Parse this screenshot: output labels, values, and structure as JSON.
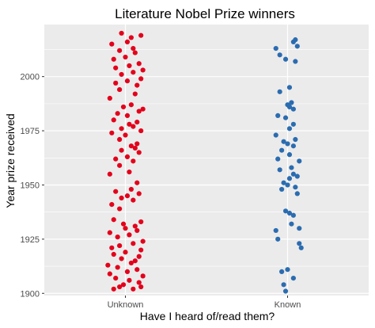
{
  "chart_data": {
    "type": "scatter",
    "title": "Literature Nobel Prize winners",
    "xlabel": "Have I heard of/read them?",
    "ylabel": "Year prize received",
    "categories": [
      "Unknown",
      "Known"
    ],
    "ylim": [
      1899,
      2024
    ],
    "yticks": [
      1900,
      1925,
      1950,
      1975,
      2000
    ],
    "grid": true,
    "legend": "none",
    "colors": {
      "panel": "#ebebeb",
      "grid": "#ffffff",
      "tick": "#333333",
      "Unknown": "#e3001b",
      "Known": "#2b6cb0"
    },
    "series": [
      {
        "name": "Unknown",
        "category": "Unknown",
        "years": [
          1902,
          1902,
          1903,
          1903,
          1904,
          1905,
          1906,
          1907,
          1908,
          1909,
          1910,
          1911,
          1912,
          1913,
          1914,
          1915,
          1916,
          1917,
          1918,
          1919,
          1920,
          1921,
          1922,
          1923,
          1924,
          1926,
          1927,
          1928,
          1929,
          1930,
          1931,
          1932,
          1933,
          1934,
          1939,
          1941,
          1943,
          1944,
          1945,
          1946,
          1947,
          1948,
          1951,
          1955,
          1956,
          1959,
          1961,
          1962,
          1963,
          1965,
          1966,
          1967,
          1968,
          1969,
          1971,
          1973,
          1974,
          1975,
          1976,
          1977,
          1978,
          1979,
          1980,
          1982,
          1983,
          1984,
          1985,
          1986,
          1987,
          1990,
          1992,
          1994,
          1996,
          1997,
          1998,
          1999,
          2001,
          2002,
          2003,
          2004,
          2005,
          2006,
          2008,
          2009,
          2011,
          2012,
          2013,
          2015,
          2016,
          2018,
          2019,
          2020
        ],
        "jitter": [
          -0.6,
          0.4,
          0.8,
          -0.3,
          -0.1,
          0.7,
          0.2,
          -0.5,
          0.9,
          -0.8,
          0.1,
          0.6,
          -0.4,
          -0.9,
          0.3,
          0.5,
          -0.2,
          0.7,
          -0.6,
          0.0,
          0.8,
          -0.7,
          -0.3,
          0.4,
          0.9,
          -0.4,
          0.2,
          -0.8,
          0.6,
          0.0,
          0.5,
          -0.1,
          0.8,
          -0.6,
          -0.3,
          -0.7,
          0.4,
          -0.2,
          0.1,
          0.7,
          -0.5,
          0.3,
          0.6,
          -0.8,
          0.2,
          -0.3,
          0.4,
          -0.5,
          0.1,
          0.7,
          -0.2,
          0.5,
          0.3,
          0.6,
          -0.3,
          0.0,
          -0.7,
          0.8,
          -0.2,
          0.4,
          0.2,
          0.6,
          -0.6,
          0.1,
          -0.4,
          0.7,
          0.9,
          -0.1,
          0.3,
          -0.8,
          0.5,
          -0.3,
          0.6,
          -0.5,
          0.1,
          0.8,
          -0.2,
          0.4,
          0.9,
          -0.5,
          0.2,
          0.7,
          -0.6,
          0.0,
          0.5,
          -0.3,
          0.4,
          -0.7,
          0.1,
          0.3,
          0.8,
          -0.2
        ]
      },
      {
        "name": "Known",
        "category": "Known",
        "years": [
          1901,
          1904,
          1907,
          1910,
          1911,
          1921,
          1923,
          1925,
          1929,
          1930,
          1932,
          1936,
          1937,
          1938,
          1946,
          1948,
          1949,
          1950,
          1951,
          1953,
          1954,
          1955,
          1957,
          1958,
          1961,
          1962,
          1964,
          1966,
          1968,
          1969,
          1970,
          1971,
          1973,
          1976,
          1978,
          1981,
          1982,
          1985,
          1986,
          1987,
          1988,
          1993,
          1995,
          2007,
          2008,
          2010,
          2013,
          2014,
          2016,
          2017
        ],
        "jitter": [
          -0.1,
          -0.2,
          0.3,
          -0.3,
          0.0,
          0.7,
          0.6,
          -0.5,
          -0.6,
          0.6,
          0.2,
          0.3,
          0.1,
          -0.1,
          0.5,
          -0.3,
          0.4,
          0.0,
          -0.2,
          0.1,
          0.5,
          0.3,
          -0.4,
          0.2,
          0.6,
          -0.5,
          0.1,
          -0.3,
          0.3,
          0.0,
          -0.2,
          0.4,
          -0.6,
          0.1,
          0.3,
          -0.1,
          -0.5,
          0.3,
          0.1,
          0.0,
          0.2,
          -0.4,
          0.1,
          0.4,
          -0.1,
          -0.4,
          -0.6,
          0.5,
          0.3,
          0.4
        ]
      }
    ]
  }
}
